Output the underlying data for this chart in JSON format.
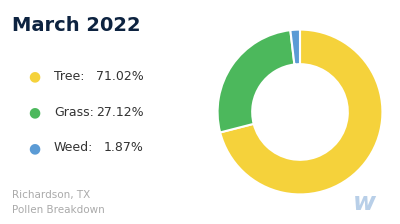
{
  "title": "March 2022",
  "title_color": "#0d2340",
  "background_color": "#ffffff",
  "labels": [
    "Tree",
    "Grass",
    "Weed"
  ],
  "values": [
    71.02,
    27.12,
    1.87
  ],
  "colors": [
    "#f5d23b",
    "#4cb85c",
    "#5b9bd5"
  ],
  "legend_items": [
    {
      "label": "Tree:",
      "pct": "71.02%"
    },
    {
      "label": "Grass:",
      "pct": "27.12%"
    },
    {
      "label": "Weed:",
      "pct": "1.87%"
    }
  ],
  "footer_text": "Richardson, TX\nPollen Breakdown",
  "footer_color": "#aaaaaa",
  "watermark_color": "#b8cfe8",
  "donut_width": 0.42
}
